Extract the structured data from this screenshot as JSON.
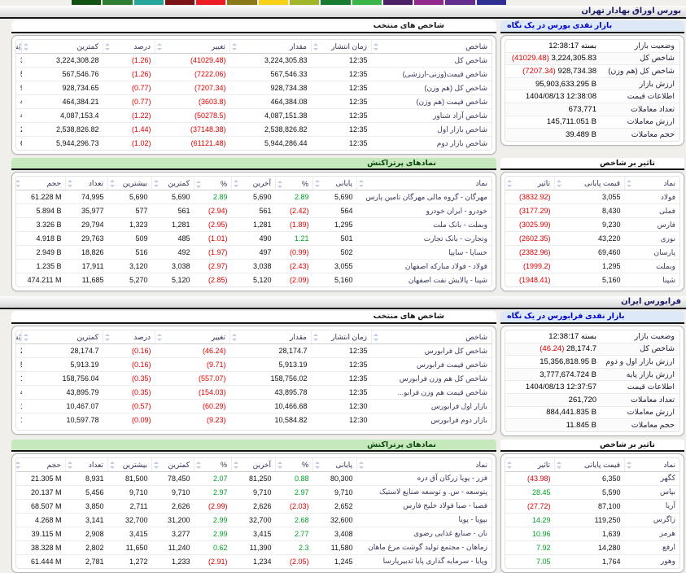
{
  "colors": {
    "negative": "#df0000",
    "positive": "#00a226",
    "link_blue": "#0000cd",
    "green_bar_bg": "#c5e8bd",
    "blue_bar_bg": "#dde9f7",
    "title_text": "#1c1c66"
  },
  "top_strip": {
    "colors": [
      "#2e3192",
      "#662d91",
      "#92278f",
      "#4b2067",
      "#39b54a",
      "#197b30",
      "#a2b52a",
      "#f7d117",
      "#8a7a1a",
      "#ed1c24",
      "#7a1416",
      "#26a69a",
      "#2e7d32",
      "#145214"
    ]
  },
  "bourse": {
    "title": "بورس اوراق بهادار تهران",
    "glance": {
      "title": "بازار نقدی بورس در یک نگاه",
      "rows": [
        {
          "label": "وضعیت بازار",
          "value": "بسته 12:38:17",
          "rtl": true
        },
        {
          "label": "شاخص کل",
          "value": "3,224,305.83",
          "change": "(41029.48)"
        },
        {
          "label": "شاخص کل (هم وزن)",
          "value": "928,734.38",
          "change": "(7207.34)"
        },
        {
          "label": "ارزش بازار",
          "value": "95,903,633.295 B"
        },
        {
          "label": "اطلاعات قیمت",
          "value": "1404/08/13 12:38:08"
        },
        {
          "label": "تعداد معاملات",
          "value": "673,771"
        },
        {
          "label": "ارزش معاملات",
          "value": "145,711.051 B"
        },
        {
          "label": "حجم معاملات",
          "value": "39.489 B"
        }
      ]
    },
    "indices": {
      "title": "شاخص های منتخب",
      "headers": [
        "شاخص",
        "زمان انتشار",
        "مقدار",
        "تغییر",
        "درصد",
        "کمترین",
        "بیشترین"
      ],
      "rows": [
        [
          "شاخص کل",
          "12:35",
          "3,224,305.83",
          {
            "v": "(41029.48)",
            "s": "neg"
          },
          {
            "v": "(1.26)",
            "s": "neg"
          },
          "3,224,308.28",
          "3,256,615.45"
        ],
        [
          "شاخص قیمت(وزنی-ارزشی)",
          "12:35",
          "567,546.33",
          {
            "v": "(7222.06)",
            "s": "neg"
          },
          {
            "v": "(1.26)",
            "s": "neg"
          },
          "567,546.76",
          "573,233.44"
        ],
        [
          "شاخص کل (هم وزن)",
          "12:35",
          "928,734.38",
          {
            "v": "(7207.34)",
            "s": "neg"
          },
          {
            "v": "(0.77)",
            "s": "neg"
          },
          "928,734.65",
          "936,138.33"
        ],
        [
          "شاخص قیمت (هم وزن)",
          "12:35",
          "464,384.08",
          {
            "v": "(3603.8)",
            "s": "neg"
          },
          {
            "v": "(0.77)",
            "s": "neg"
          },
          "464,384.21",
          "468,086.19"
        ],
        [
          "شاخص آزاد شناور",
          "12:35",
          "4,087,151.38",
          {
            "v": "(50278.5)",
            "s": "neg"
          },
          {
            "v": "(1.22)",
            "s": "neg"
          },
          "4,087,153.4",
          "4,123,566.54"
        ],
        [
          "شاخص بازار اول",
          "12:35",
          "2,538,826.82",
          {
            "v": "(37148.38)",
            "s": "neg"
          },
          {
            "v": "(1.44)",
            "s": "neg"
          },
          "2,538,826.82",
          "2,564,980.37"
        ],
        [
          "شاخص بازار دوم",
          "12:35",
          "5,944,286.44",
          {
            "v": "(61121.48)",
            "s": "neg"
          },
          {
            "v": "(1.02)",
            "s": "neg"
          },
          "5,944,296.73",
          "6,001,712.82"
        ]
      ]
    },
    "most_traded": {
      "title": "نمادهای پرتراکنش",
      "headers": [
        "نماد",
        "پایانی",
        "%",
        "آخرین",
        "%",
        "کمترین",
        "بیشترین",
        "تعداد",
        "حجم",
        "ارزش"
      ],
      "rows": [
        [
          "مهرگان - گروه مالی مهرگان تامین پارس",
          "5,690",
          {
            "v": "2.89",
            "s": "pos"
          },
          "5,690",
          {
            "v": "2.89",
            "s": "pos"
          },
          "5,690",
          "5,690",
          "74,995",
          "61.228 M",
          "348.389 B"
        ],
        [
          "خودرو - ایران خودرو",
          "564",
          {
            "v": "(2.42)",
            "s": "neg"
          },
          "561",
          {
            "v": "(2.94)",
            "s": "neg"
          },
          "561",
          "577",
          "35,977",
          "5.894 B",
          "3,325.271 B"
        ],
        [
          "وبملت - بانک ملت",
          "1,295",
          {
            "v": "(1.89)",
            "s": "neg"
          },
          "1,281",
          {
            "v": "(2.95)",
            "s": "neg"
          },
          "1,281",
          "1,323",
          "29,794",
          "3.326 B",
          "4,305.681 B"
        ],
        [
          "وتجارت - بانک تجارت",
          "501",
          {
            "v": "1.21",
            "s": "pos"
          },
          "490",
          {
            "v": "(1.01)",
            "s": "neg"
          },
          "485",
          "509",
          "29,763",
          "4.918 B",
          "2,461.694 B"
        ],
        [
          "خساپا - سایپا",
          "502",
          {
            "v": "(0.99)",
            "s": "neg"
          },
          "497",
          {
            "v": "(1.97)",
            "s": "neg"
          },
          "492",
          "516",
          "18,826",
          "2.949 B",
          "1,480.319 B"
        ],
        [
          "فولاد - فولاد مبارکه اصفهان",
          "3,055",
          {
            "v": "(2.43)",
            "s": "neg"
          },
          "3,038",
          {
            "v": "(2.97)",
            "s": "neg"
          },
          "3,038",
          "3,120",
          "17,911",
          "1.235 B",
          "3,772.894 B"
        ],
        [
          "شپنا - پالایش نفت اصفهان",
          "5,160",
          {
            "v": "(2.09)",
            "s": "neg"
          },
          "5,120",
          {
            "v": "(2.85)",
            "s": "neg"
          },
          "5,120",
          "5,270",
          "11,685",
          "474.211 M",
          "2,449.132 B"
        ]
      ]
    },
    "impact": {
      "title": "تاثیر بر شاخص",
      "headers": [
        "نماد",
        "قیمت پایانی",
        "تاثیر"
      ],
      "rows": [
        [
          "فولاد",
          "3,055",
          {
            "v": "(3832.92)",
            "s": "neg"
          }
        ],
        [
          "فملی",
          "8,430",
          {
            "v": "(3177.29)",
            "s": "neg"
          }
        ],
        [
          "فارس",
          "9,230",
          {
            "v": "(3025.99)",
            "s": "neg"
          }
        ],
        [
          "نوری",
          "43,220",
          {
            "v": "(2602.35)",
            "s": "neg"
          }
        ],
        [
          "پارسان",
          "69,460",
          {
            "v": "(2382.96)",
            "s": "neg"
          }
        ],
        [
          "وبملت",
          "1,295",
          {
            "v": "(1999.2)",
            "s": "neg"
          }
        ],
        [
          "شپنا",
          "5,160",
          {
            "v": "(1948.41)",
            "s": "neg"
          }
        ]
      ]
    }
  },
  "farabourse": {
    "title": "فرابورس ایران",
    "glance": {
      "title": "بازار نقدی فرابورس در یک نگاه",
      "rows": [
        {
          "label": "وضعیت بازار",
          "value": "بسته 12:38:17",
          "rtl": true
        },
        {
          "label": "شاخص کل",
          "value": "28,174.7",
          "change": "(46.24)"
        },
        {
          "label": "ارزش بازار اول و دوم",
          "value": "15,356,818.95 B"
        },
        {
          "label": "ارزش بازار پایه",
          "value": "3,777,674.724 B"
        },
        {
          "label": "اطلاعات قیمت",
          "value": "1404/08/13 12:37:57"
        },
        {
          "label": "تعداد معاملات",
          "value": "261,720"
        },
        {
          "label": "ارزش معاملات",
          "value": "884,441.835 B"
        },
        {
          "label": "حجم معاملات",
          "value": "11.845 B"
        }
      ]
    },
    "indices": {
      "title": "شاخص های منتخب",
      "headers": [
        "شاخص",
        "زمان انتشار",
        "مقدار",
        "تغییر",
        "درصد",
        "کمترین",
        "بیشترین"
      ],
      "rows": [
        [
          "شاخص کل فرابورس",
          "12:35",
          "28,174.7",
          {
            "v": "(46.24)",
            "s": "neg"
          },
          {
            "v": "(0.16)",
            "s": "neg"
          },
          "28,174.7",
          "28,255.74"
        ],
        [
          "شاخص قیمت فرابورس",
          "12:35",
          "5,913.19",
          {
            "v": "(9.71)",
            "s": "neg"
          },
          {
            "v": "(0.16)",
            "s": "neg"
          },
          "5,913.19",
          "5,930.2"
        ],
        [
          "شاخص کل هم وزن فرابورس",
          "12:35",
          "158,756.02",
          {
            "v": "(557.07)",
            "s": "neg"
          },
          {
            "v": "(0.35)",
            "s": "neg"
          },
          "158,756.04",
          "159,351.73"
        ],
        [
          "شاخص قیمت هم وزن فرابو...",
          "12:35",
          "43,895.78",
          {
            "v": "(154.03)",
            "s": "neg"
          },
          {
            "v": "(0.35)",
            "s": "neg"
          },
          "43,895.79",
          "44,060.5"
        ],
        [
          "بازار اول فرابورس",
          "12:30",
          "10,466.68",
          {
            "v": "(60.29)",
            "s": "neg"
          },
          {
            "v": "(0.57)",
            "s": "neg"
          },
          "10,467.07",
          "10,505.95"
        ],
        [
          "بازار دوم فرابورس",
          "12:30",
          "10,584.82",
          {
            "v": "(9.23)",
            "s": "neg"
          },
          {
            "v": "(0.09)",
            "s": "neg"
          },
          "10,597.78",
          "10,616.47"
        ]
      ]
    },
    "most_traded": {
      "title": "نمادهای پرتراکنش",
      "headers": [
        "نماد",
        "پایانی",
        "%",
        "آخرین",
        "%",
        "کمترین",
        "بیشترین",
        "تعداد",
        "حجم",
        "ارزش"
      ],
      "rows": [
        [
          "فزر - پویا زرکان آق دره",
          "80,300",
          {
            "v": "0.88",
            "s": "pos"
          },
          "81,250",
          {
            "v": "2.07",
            "s": "pos"
          },
          "78,450",
          "81,500",
          "8,931",
          "21.305 M",
          "1,710.618 B"
        ],
        [
          "پتوسعه - س. و توسعه صنایع لاستیک",
          "9,710",
          {
            "v": "2.97",
            "s": "pos"
          },
          "9,710",
          {
            "v": "2.97",
            "s": "pos"
          },
          "9,710",
          "9,710",
          "5,456",
          "20.137 M",
          "195.534 B"
        ],
        [
          "فصبا - صبا فولاد خلیج فارس",
          "2,652",
          {
            "v": "(2.03)",
            "s": "neg"
          },
          "2,626",
          {
            "v": "(2.99)",
            "s": "neg"
          },
          "2,626",
          "2,711",
          "3,850",
          "68.507 M",
          "181.696 B"
        ],
        [
          "بپویا - پویا",
          "32,600",
          {
            "v": "2.68",
            "s": "pos"
          },
          "32,700",
          {
            "v": "2.99",
            "s": "pos"
          },
          "31,200",
          "32,700",
          "3,141",
          "4.268 M",
          "139.142 B"
        ],
        [
          "نان - صنایع غذایی رضوی",
          "3,408",
          {
            "v": "2.77",
            "s": "pos"
          },
          "3,415",
          {
            "v": "2.99",
            "s": "pos"
          },
          "3,277",
          "3,415",
          "2,908",
          "39.115 M",
          "133.322 B"
        ],
        [
          "زماهان - مجتمع تولید گوشت مرغ ماهان",
          "11,580",
          {
            "v": "2.3",
            "s": "pos"
          },
          "11,390",
          {
            "v": "0.62",
            "s": "pos"
          },
          "11,240",
          "11,650",
          "2,802",
          "38.328 M",
          "443.79 B"
        ],
        [
          "وپایا - سرمایه گذاری پایا تدبیرپارسا",
          "1,245",
          {
            "v": "(2.05)",
            "s": "neg"
          },
          "1,234",
          {
            "v": "(2.91)",
            "s": "neg"
          },
          "1,233",
          "1,272",
          "2,781",
          "61.444 M",
          "76.491 B"
        ]
      ]
    },
    "impact": {
      "title": "تاثیر بر شاخص",
      "headers": [
        "نماد",
        "قیمت پایانی",
        "تاثیر"
      ],
      "rows": [
        [
          "کگهر",
          "6,350",
          {
            "v": "(43.98)",
            "s": "neg"
          }
        ],
        [
          "بپاس",
          "5,590",
          {
            "v": "28.45",
            "s": "pos"
          }
        ],
        [
          "آریا",
          "87,100",
          {
            "v": "(27.72)",
            "s": "neg"
          }
        ],
        [
          "زاگرس",
          "119,250",
          {
            "v": "14.29",
            "s": "pos"
          }
        ],
        [
          "هرمز",
          "1,639",
          {
            "v": "10.96",
            "s": "pos"
          }
        ],
        [
          "ارفع",
          "14,280",
          {
            "v": "7.92",
            "s": "pos"
          }
        ],
        [
          "وهور",
          "1,764",
          {
            "v": "7.05",
            "s": "pos"
          }
        ]
      ]
    }
  }
}
